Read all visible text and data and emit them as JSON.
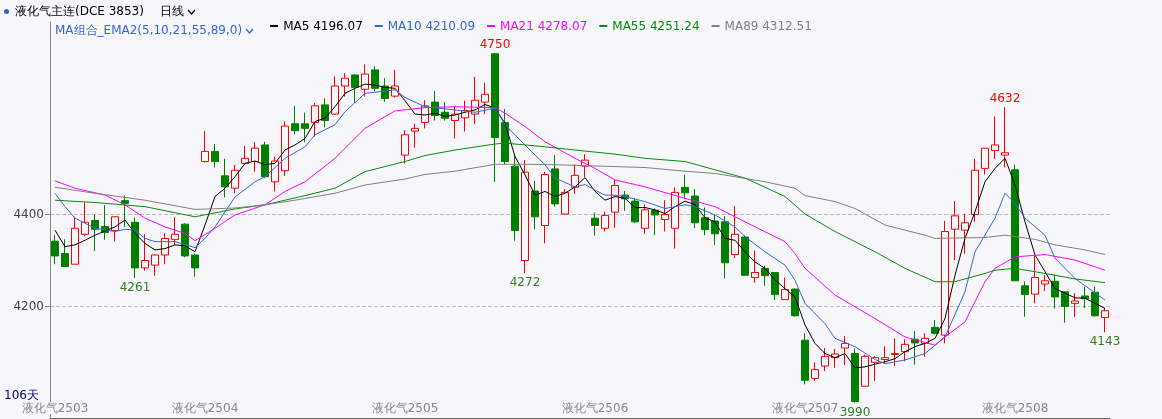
{
  "chart_data": {
    "type": "candlestick",
    "title": "液化气主连(DCE 3853)",
    "subtitle": "日线",
    "legend_title": "MA组合_EMA2(5,10,21,55,89,0)",
    "legend": "top left",
    "grid": "y",
    "marker": "none",
    "ylim": [
      3957,
      4817
    ],
    "yticks": [
      4200,
      4400
    ],
    "categories": [
      "液化气2503",
      null,
      null,
      null,
      null,
      null,
      null,
      null,
      null,
      null,
      null,
      null,
      null,
      null,
      null,
      "液化气2504",
      null,
      null,
      null,
      null,
      null,
      null,
      null,
      null,
      null,
      null,
      null,
      null,
      null,
      null,
      null,
      null,
      null,
      null,
      null,
      "液化气2505",
      null,
      null,
      null,
      null,
      null,
      null,
      null,
      null,
      null,
      null,
      null,
      null,
      null,
      null,
      null,
      null,
      null,
      null,
      "液化气2506",
      null,
      null,
      null,
      null,
      null,
      null,
      null,
      null,
      null,
      null,
      null,
      null,
      null,
      null,
      null,
      null,
      null,
      null,
      null,
      null,
      "液化气2507",
      null,
      null,
      null,
      null,
      null,
      null,
      null,
      null,
      null,
      null,
      null,
      null,
      null,
      null,
      null,
      null,
      null,
      null,
      null,
      null,
      "液化气2508",
      null,
      null,
      null,
      null,
      null,
      null,
      null,
      null,
      null
    ],
    "ohlc": [
      [
        4341,
        4354,
        4291,
        4309
      ],
      [
        4314,
        4345,
        4286,
        4286
      ],
      [
        4291,
        4394,
        4291,
        4369
      ],
      [
        4356,
        4425,
        4351,
        4382
      ],
      [
        4386,
        4399,
        4320,
        4367
      ],
      [
        4373,
        4419,
        4344,
        4360
      ],
      [
        4364,
        4394,
        4340,
        4394
      ],
      [
        4429,
        4440,
        4372,
        4423
      ],
      [
        4382,
        4392,
        4261,
        4283
      ],
      [
        4283,
        4356,
        4277,
        4299
      ],
      [
        4289,
        4312,
        4266,
        4311
      ],
      [
        4311,
        4358,
        4291,
        4347
      ],
      [
        4345,
        4393,
        4333,
        4356
      ],
      [
        4378,
        4380,
        4306,
        4309
      ],
      [
        4311,
        4314,
        4264,
        4283
      ],
      [
        4514,
        4580,
        4512,
        4536
      ],
      [
        4536,
        4552,
        4501,
        4514
      ],
      [
        4483,
        4520,
        4436,
        4459
      ],
      [
        4456,
        4507,
        4445,
        4495
      ],
      [
        4510,
        4548,
        4507,
        4521
      ],
      [
        4514,
        4556,
        4492,
        4543
      ],
      [
        4550,
        4557,
        4478,
        4481
      ],
      [
        4470,
        4525,
        4449,
        4515
      ],
      [
        4494,
        4601,
        4483,
        4591
      ],
      [
        4596,
        4635,
        4573,
        4581
      ],
      [
        4596,
        4620,
        4556,
        4586
      ],
      [
        4599,
        4641,
        4568,
        4635
      ],
      [
        4637,
        4651,
        4588,
        4603
      ],
      [
        4617,
        4699,
        4615,
        4678
      ],
      [
        4678,
        4706,
        4655,
        4695
      ],
      [
        4702,
        4704,
        4641,
        4675
      ],
      [
        4671,
        4725,
        4655,
        4704
      ],
      [
        4713,
        4721,
        4666,
        4673
      ],
      [
        4678,
        4695,
        4644,
        4651
      ],
      [
        4656,
        4713,
        4653,
        4678
      ],
      [
        4528,
        4582,
        4510,
        4572
      ],
      [
        4580,
        4596,
        4544,
        4586
      ],
      [
        4599,
        4647,
        4586,
        4635
      ],
      [
        4643,
        4667,
        4603,
        4614
      ],
      [
        4621,
        4643,
        4603,
        4608
      ],
      [
        4603,
        4633,
        4564,
        4617
      ],
      [
        4609,
        4646,
        4579,
        4625
      ],
      [
        4617,
        4698,
        4595,
        4647
      ],
      [
        4643,
        4685,
        4617,
        4660
      ],
      [
        4748,
        4750,
        4470,
        4566
      ],
      [
        4599,
        4628,
        4507,
        4514
      ],
      [
        4504,
        4528,
        4342,
        4364
      ],
      [
        4299,
        4517,
        4272,
        4491
      ],
      [
        4450,
        4472,
        4367,
        4394
      ],
      [
        4375,
        4492,
        4336,
        4486
      ],
      [
        4498,
        4528,
        4416,
        4422
      ],
      [
        4400,
        4454,
        4399,
        4447
      ],
      [
        4458,
        4508,
        4444,
        4484
      ],
      [
        4504,
        4530,
        4480,
        4517
      ],
      [
        4391,
        4403,
        4353,
        4375
      ],
      [
        4369,
        4405,
        4362,
        4397
      ],
      [
        4404,
        4474,
        4370,
        4462
      ],
      [
        4441,
        4450,
        4407,
        4433
      ],
      [
        4428,
        4434,
        4381,
        4383
      ],
      [
        4369,
        4421,
        4357,
        4409
      ],
      [
        4408,
        4412,
        4354,
        4398
      ],
      [
        4388,
        4430,
        4362,
        4399
      ],
      [
        4369,
        4458,
        4325,
        4447
      ],
      [
        4458,
        4485,
        4433,
        4446
      ],
      [
        4439,
        4454,
        4369,
        4381
      ],
      [
        4392,
        4414,
        4354,
        4366
      ],
      [
        4385,
        4398,
        4333,
        4357
      ],
      [
        4383,
        4396,
        4260,
        4294
      ],
      [
        4312,
        4417,
        4304,
        4356
      ],
      [
        4350,
        4353,
        4266,
        4267
      ],
      [
        4262,
        4321,
        4251,
        4273
      ],
      [
        4282,
        4288,
        4244,
        4266
      ],
      [
        4273,
        4273,
        4213,
        4225
      ],
      [
        4214,
        4262,
        4214,
        4236
      ],
      [
        4237,
        4238,
        4177,
        4179
      ],
      [
        4126,
        4141,
        4030,
        4039
      ],
      [
        4043,
        4078,
        4038,
        4062
      ],
      [
        4070,
        4109,
        4059,
        4091
      ],
      [
        4088,
        4107,
        4066,
        4096
      ],
      [
        4109,
        4135,
        4072,
        4119
      ],
      [
        4097,
        4108,
        3990,
        3993
      ],
      [
        4026,
        4095,
        4026,
        4091
      ],
      [
        4078,
        4092,
        4038,
        4088
      ],
      [
        4084,
        4113,
        4074,
        4088
      ],
      [
        4095,
        4130,
        4070,
        4097
      ],
      [
        4101,
        4128,
        4080,
        4117
      ],
      [
        4128,
        4146,
        4073,
        4120
      ],
      [
        4119,
        4141,
        4090,
        4130
      ],
      [
        4154,
        4170,
        4138,
        4141
      ],
      [
        4137,
        4385,
        4119,
        4362
      ],
      [
        4367,
        4428,
        4300,
        4396
      ],
      [
        4365,
        4401,
        4314,
        4381
      ],
      [
        4399,
        4520,
        4383,
        4495
      ],
      [
        4499,
        4543,
        4486,
        4543
      ],
      [
        4538,
        4612,
        4519,
        4550
      ],
      [
        4528,
        4632,
        4501,
        4533
      ],
      [
        4496,
        4507,
        4255,
        4255
      ],
      [
        4244,
        4254,
        4177,
        4225
      ],
      [
        4226,
        4309,
        4206,
        4262
      ],
      [
        4248,
        4267,
        4233,
        4255
      ],
      [
        4254,
        4269,
        4195,
        4220
      ],
      [
        4231,
        4231,
        4164,
        4199
      ],
      [
        4206,
        4228,
        4177,
        4211
      ],
      [
        4222,
        4242,
        4196,
        4216
      ],
      [
        4230,
        4242,
        4177,
        4179
      ],
      [
        4175,
        4196,
        4143,
        4190
      ]
    ],
    "colors": [
      "#008000",
      "#008000",
      "#ff0000",
      "#ff0000",
      "#008000",
      "#008000",
      "#ff0000",
      "#008000",
      "#008000",
      "#ff0000",
      "#ff0000",
      "#ff0000",
      "#ff0000",
      "#008000",
      "#008000",
      "#ff0000",
      "#008000",
      "#008000",
      "#ff0000",
      "#ff0000",
      "#ff0000",
      "#008000",
      "#ff0000",
      "#ff0000",
      "#008000",
      "#008000",
      "#ff0000",
      "#008000",
      "#ff0000",
      "#ff0000",
      "#008000",
      "#ff0000",
      "#008000",
      "#008000",
      "#ff0000",
      "#ff0000",
      "#ff0000",
      "#ff0000",
      "#008000",
      "#008000",
      "#ff0000",
      "#ff0000",
      "#ff0000",
      "#ff0000",
      "#008000",
      "#008000",
      "#008000",
      "#ff0000",
      "#008000",
      "#ff0000",
      "#008000",
      "#ff0000",
      "#ff0000",
      "#ff0000",
      "#008000",
      "#ff0000",
      "#ff0000",
      "#008000",
      "#008000",
      "#ff0000",
      "#008000",
      "#ff0000",
      "#ff0000",
      "#008000",
      "#008000",
      "#008000",
      "#008000",
      "#008000",
      "#ff0000",
      "#008000",
      "#ff0000",
      "#008000",
      "#008000",
      "#ff0000",
      "#008000",
      "#008000",
      "#ff0000",
      "#ff0000",
      "#ff0000",
      "#ff0000",
      "#008000",
      "#ff0000",
      "#ff0000",
      "#ff0000",
      "#ff0000",
      "#ff0000",
      "#008000",
      "#ff0000",
      "#008000",
      "#ff0000",
      "#ff0000",
      "#ff0000",
      "#ff0000",
      "#ff0000",
      "#ff0000",
      "#ff0000",
      "#008000",
      "#008000",
      "#ff0000",
      "#ff0000",
      "#008000",
      "#008000",
      "#ff0000",
      "#008000",
      "#008000",
      "#ff0000"
    ],
    "series": [
      {
        "type": "line",
        "name": "MA5 4196.07",
        "color": "#000000",
        "values": [
          4365,
          4329,
          4333,
          4343,
          4354,
          4363,
          4372,
          4387,
          4358,
          4336,
          4322,
          4325,
          4333,
          4331,
          4318,
          4376,
          4438,
          4456,
          4481,
          4510,
          4515,
          4507,
          4510,
          4539,
          4550,
          4564,
          4601,
          4608,
          4633,
          4662,
          4673,
          4682,
          4680,
          4675,
          4673,
          4646,
          4617,
          4615,
          4619,
          4612,
          4615,
          4621,
          4626,
          4638,
          4630,
          4597,
          4525,
          4485,
          4441,
          4449,
          4438,
          4445,
          4459,
          4479,
          4449,
          4430,
          4438,
          4434,
          4414,
          4414,
          4409,
          4401,
          4416,
          4428,
          4420,
          4392,
          4383,
          4347,
          4343,
          4318,
          4296,
          4282,
          4257,
          4238,
          4220,
          4159,
          4119,
          4097,
          4088,
          4097,
          4066,
          4068,
          4074,
          4079,
          4086,
          4101,
          4112,
          4119,
          4130,
          4173,
          4267,
          4347,
          4405,
          4470,
          4499,
          4521,
          4463,
          4383,
          4311,
          4275,
          4238,
          4228,
          4218,
          4217,
          4206,
          4195
        ]
      },
      {
        "type": "line",
        "name": "MA10 4210.09",
        "color": "#3366dd",
        "values": [
          4445,
          4416,
          4391,
          null,
          4369,
          null,
          4362,
          4367,
          4365,
          4347,
          4340,
          null,
          4340,
          null,
          4327,
          4347,
          4372,
          null,
          4437,
          null,
          4470,
          4481,
          null,
          4521,
          null,
          4546,
          4572,
          null,
          4594,
          4622,
          null,
          4662,
          null,
          4667,
          4670,
          4653,
          null,
          4633,
          null,
          null,
          4626,
          null,
          4621,
          null,
          4630,
          4594,
          null,
          4550,
          null,
          4507,
          4478,
          null,
          4459,
          4464,
          4452,
          4441,
          4441,
          4438,
          null,
          4427,
          null,
          4412,
          null,
          4420,
          4416,
          null,
          4398,
          null,
          4372,
          4351,
          null,
          4318,
          null,
          4289,
          4256,
          4206,
          null,
          4162,
          4130,
          null,
          4112,
          null,
          4084,
          4075,
          null,
          4083,
          null,
          4097,
          4115,
          4133,
          null,
          4231,
          4318,
          null,
          4391,
          4445,
          4423,
          4391,
          null,
          4354,
          4304,
          null,
          4260,
          null,
          null,
          4213
        ]
      },
      {
        "type": "line",
        "name": "MA21 4278.07",
        "color": "#ff00ff",
        "values": [
          4472,
          null,
          4456,
          null,
          null,
          4441,
          null,
          4420,
          null,
          4391,
          null,
          4372,
          null,
          4358,
          4342,
          null,
          4369,
          null,
          4398,
          null,
          null,
          4420,
          null,
          4449,
          null,
          4470,
          null,
          null,
          4521,
          null,
          null,
          4586,
          null,
          null,
          4624,
          null,
          null,
          4631,
          null,
          null,
          4633,
          null,
          null,
          null,
          4631,
          4619,
          null,
          4590,
          null,
          4557,
          null,
          null,
          4521,
          null,
          4499,
          null,
          4474,
          null,
          null,
          4459,
          null,
          null,
          null,
          4434,
          null,
          null,
          4416,
          null,
          null,
          4383,
          null,
          null,
          null,
          4340,
          4314,
          4282,
          null,
          null,
          4224,
          null,
          null,
          null,
          4173,
          null,
          null,
          4133,
          null,
          null,
          4115,
          4133,
          null,
          4166,
          null,
          4253,
          4282,
          null,
          4307,
          null,
          null,
          4312,
          null,
          null,
          4300,
          null,
          null,
          4278
        ]
      },
      {
        "type": "line",
        "name": "MA55 4251.24",
        "color": "#0a8a0a",
        "values": [
          4430,
          null,
          null,
          null,
          4425,
          null,
          null,
          null,
          null,
          4416,
          null,
          null,
          null,
          null,
          4394,
          null,
          null,
          null,
          4411,
          null,
          null,
          4420,
          null,
          null,
          null,
          4440,
          null,
          null,
          4456,
          null,
          null,
          4492,
          null,
          null,
          null,
          4514,
          null,
          4527,
          null,
          null,
          4539,
          null,
          null,
          null,
          4552,
          4554,
          null,
          null,
          null,
          4546,
          null,
          null,
          4539,
          null,
          null,
          null,
          4530,
          null,
          null,
          4521,
          null,
          null,
          null,
          4514,
          null,
          null,
          4496,
          null,
          null,
          4478,
          null,
          null,
          null,
          4438,
          null,
          4400,
          null,
          null,
          4362,
          null,
          null,
          null,
          4318,
          null,
          null,
          4282,
          null,
          null,
          4253,
          null,
          4253,
          null,
          null,
          4271,
          4278,
          null,
          4282,
          null,
          null,
          4271,
          null,
          null,
          4259,
          null,
          null,
          4251
        ]
      },
      {
        "type": "line",
        "name": "MA89 4312.51",
        "color": "#808080",
        "values": [
          4458,
          null,
          null,
          null,
          4445,
          null,
          null,
          null,
          null,
          4430,
          null,
          null,
          null,
          null,
          4410,
          null,
          null,
          null,
          4413,
          null,
          null,
          4420,
          null,
          null,
          4430,
          null,
          null,
          null,
          4445,
          null,
          null,
          4463,
          null,
          null,
          null,
          4476,
          null,
          4486,
          null,
          null,
          4493,
          null,
          null,
          null,
          4508,
          null,
          null,
          4508,
          null,
          null,
          4507,
          null,
          null,
          null,
          null,
          null,
          4503,
          null,
          null,
          4501,
          null,
          null,
          null,
          4493,
          null,
          null,
          4488,
          null,
          4481,
          null,
          null,
          4470,
          null,
          null,
          4456,
          4440,
          null,
          null,
          4427,
          null,
          4412,
          null,
          null,
          4376,
          null,
          null,
          null,
          4354,
          4347,
          null,
          null,
          null,
          null,
          4349,
          null,
          4354,
          null,
          null,
          4345,
          null,
          4333,
          null,
          null,
          4322,
          null,
          4312
        ]
      }
    ],
    "annotations": [
      "106天",
      {
        "text": "4750",
        "y": 4750
      },
      {
        "text": "4261",
        "y": 4261
      },
      {
        "text": "4272",
        "y": 4272
      },
      {
        "text": "3990",
        "y": 3990
      },
      {
        "text": "4632",
        "y": 4632
      },
      {
        "text": "4143",
        "y": 4143
      }
    ]
  }
}
